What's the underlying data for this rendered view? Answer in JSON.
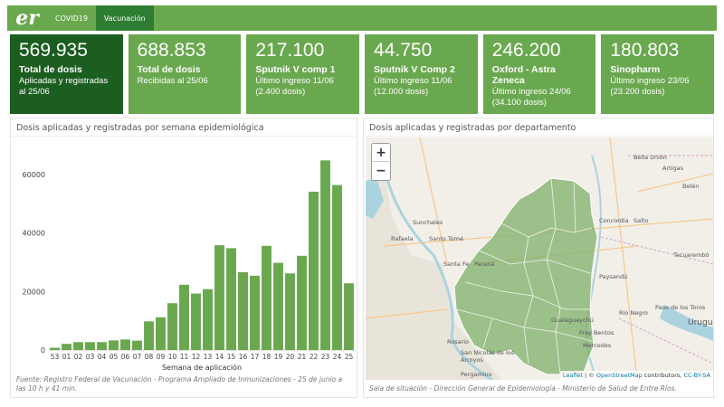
{
  "header": {
    "logo_text": "er",
    "nav": [
      "COVID19",
      "Vacunación"
    ]
  },
  "cards": [
    {
      "value": "569.935",
      "label": "Total de dosis",
      "sub1": "Aplicadas y registradas",
      "sub2": "al 25/06"
    },
    {
      "value": "688.853",
      "label": "Total de dosis",
      "sub1": "Recibidas al 25/06",
      "sub2": ""
    },
    {
      "value": "217.100",
      "label": "Sputnik V comp 1",
      "sub1": "Último ingreso 11/06",
      "sub2": "(2.400 dosis)"
    },
    {
      "value": "44.750",
      "label": "Sputnik V Comp 2",
      "sub1": "Último ingreso 11/06",
      "sub2": "(12.000 dosis)"
    },
    {
      "value": "246.200",
      "label": "Oxford - Astra Zeneca",
      "sub1": "Último ingreso 24/06",
      "sub2": "(34.100 dosis)"
    },
    {
      "value": "180.803",
      "label": "Sinopharm",
      "sub1": "Último ingreso 23/06",
      "sub2": "(23.200 dosis)"
    }
  ],
  "chart_panel": {
    "title": "Dosis aplicadas y registradas por semana epidemiológica",
    "footer": "Fuente: Registro Federal de Vacunación - Programa Ampliado de Inmunizaciones - 25 de junio a las 10 h y 41 min."
  },
  "map_panel": {
    "title": "Dosis aplicadas y registradas por departamento",
    "footer": "Sala de situación - Dirección General de Epidemiología - Ministerio de Salud de Entre Ríos.",
    "zoom_in": "+",
    "zoom_out": "−",
    "attribution_leaflet": "Leaflet",
    "attribution_text": " | © ",
    "attribution_osm": "OpenStreetMap",
    "attribution_tail": " contributors, ",
    "attribution_license": "CC-BY-SA",
    "cities": [
      "Sunchales",
      "Rafaela",
      "Santo Tomé",
      "Santa Fe",
      "Paraná",
      "Rosario",
      "San Nicolás de los Arroyos",
      "Pergamino",
      "Concordia",
      "Salto",
      "Artigas",
      "Paysandú",
      "Tacuarembó",
      "Río Negro",
      "Mercedes",
      "Fray Bentos",
      "Gualeguaychú",
      "Paso de los Toros",
      "Uruguay",
      "Belén",
      "Bella Unión"
    ]
  },
  "chart_data": {
    "type": "bar",
    "title": "",
    "xlabel": "Semana de aplicación",
    "ylabel": "",
    "ylim": [
      0,
      68000
    ],
    "yticks": [
      0,
      20000,
      40000,
      60000
    ],
    "categories": [
      "53",
      "01",
      "02",
      "03",
      "04",
      "05",
      "06",
      "07",
      "08",
      "09",
      "10",
      "11",
      "12",
      "13",
      "14",
      "15",
      "16",
      "17",
      "18",
      "19",
      "20",
      "21",
      "22",
      "23",
      "24",
      "25"
    ],
    "values": [
      800,
      2100,
      2700,
      2700,
      2700,
      3300,
      3600,
      3200,
      9800,
      11200,
      16000,
      22300,
      19300,
      20800,
      35800,
      34800,
      26600,
      25400,
      35600,
      29800,
      26200,
      32200,
      54100,
      64800,
      56400,
      22800
    ],
    "color": "#6aa84f",
    "grid": false
  }
}
